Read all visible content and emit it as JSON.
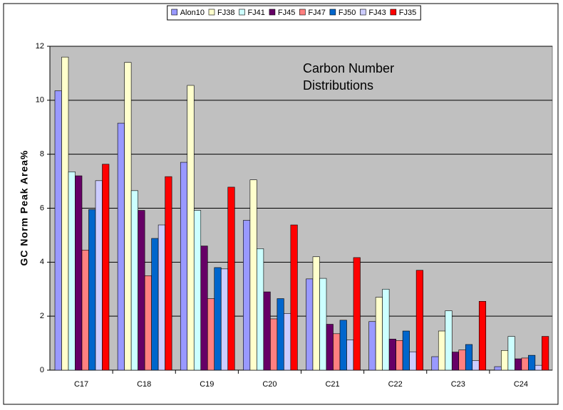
{
  "chart_data": {
    "type": "bar",
    "y_label": "GC Norm Peak Area%",
    "annotation": "Carbon Number Distributions",
    "categories": [
      "C17",
      "C18",
      "C19",
      "C20",
      "C21",
      "C22",
      "C23",
      "C24"
    ],
    "series": [
      {
        "name": "Alon10",
        "color": "#9999ff",
        "values": [
          10.35,
          9.15,
          7.7,
          5.55,
          3.38,
          1.8,
          0.5,
          0.13
        ]
      },
      {
        "name": "FJ38",
        "color": "#ffffcc",
        "values": [
          11.6,
          11.4,
          10.55,
          7.05,
          4.2,
          2.7,
          1.45,
          0.73
        ]
      },
      {
        "name": "FJ41",
        "color": "#ccffff",
        "values": [
          7.35,
          6.65,
          5.92,
          4.5,
          3.4,
          3.0,
          2.2,
          1.25
        ]
      },
      {
        "name": "FJ45",
        "color": "#660066",
        "values": [
          7.2,
          5.92,
          4.6,
          2.9,
          1.7,
          1.15,
          0.67,
          0.42
        ]
      },
      {
        "name": "FJ47",
        "color": "#ff8080",
        "values": [
          4.45,
          3.5,
          2.65,
          1.9,
          1.35,
          1.1,
          0.75,
          0.45
        ]
      },
      {
        "name": "FJ50",
        "color": "#0066cc",
        "values": [
          5.95,
          4.88,
          3.8,
          2.65,
          1.85,
          1.45,
          0.95,
          0.55
        ]
      },
      {
        "name": "FJ43",
        "color": "#ccccff",
        "values": [
          7.02,
          5.38,
          3.75,
          2.1,
          1.12,
          0.68,
          0.35,
          0.18
        ]
      },
      {
        "name": "FJ35",
        "color": "#ff0000",
        "values": [
          7.63,
          7.17,
          6.78,
          5.38,
          4.17,
          3.7,
          2.55,
          1.25
        ]
      }
    ],
    "ylim": [
      0,
      12
    ],
    "yticks": [
      0,
      2,
      4,
      6,
      8,
      10,
      12
    ],
    "grid": true,
    "legend": "top"
  }
}
